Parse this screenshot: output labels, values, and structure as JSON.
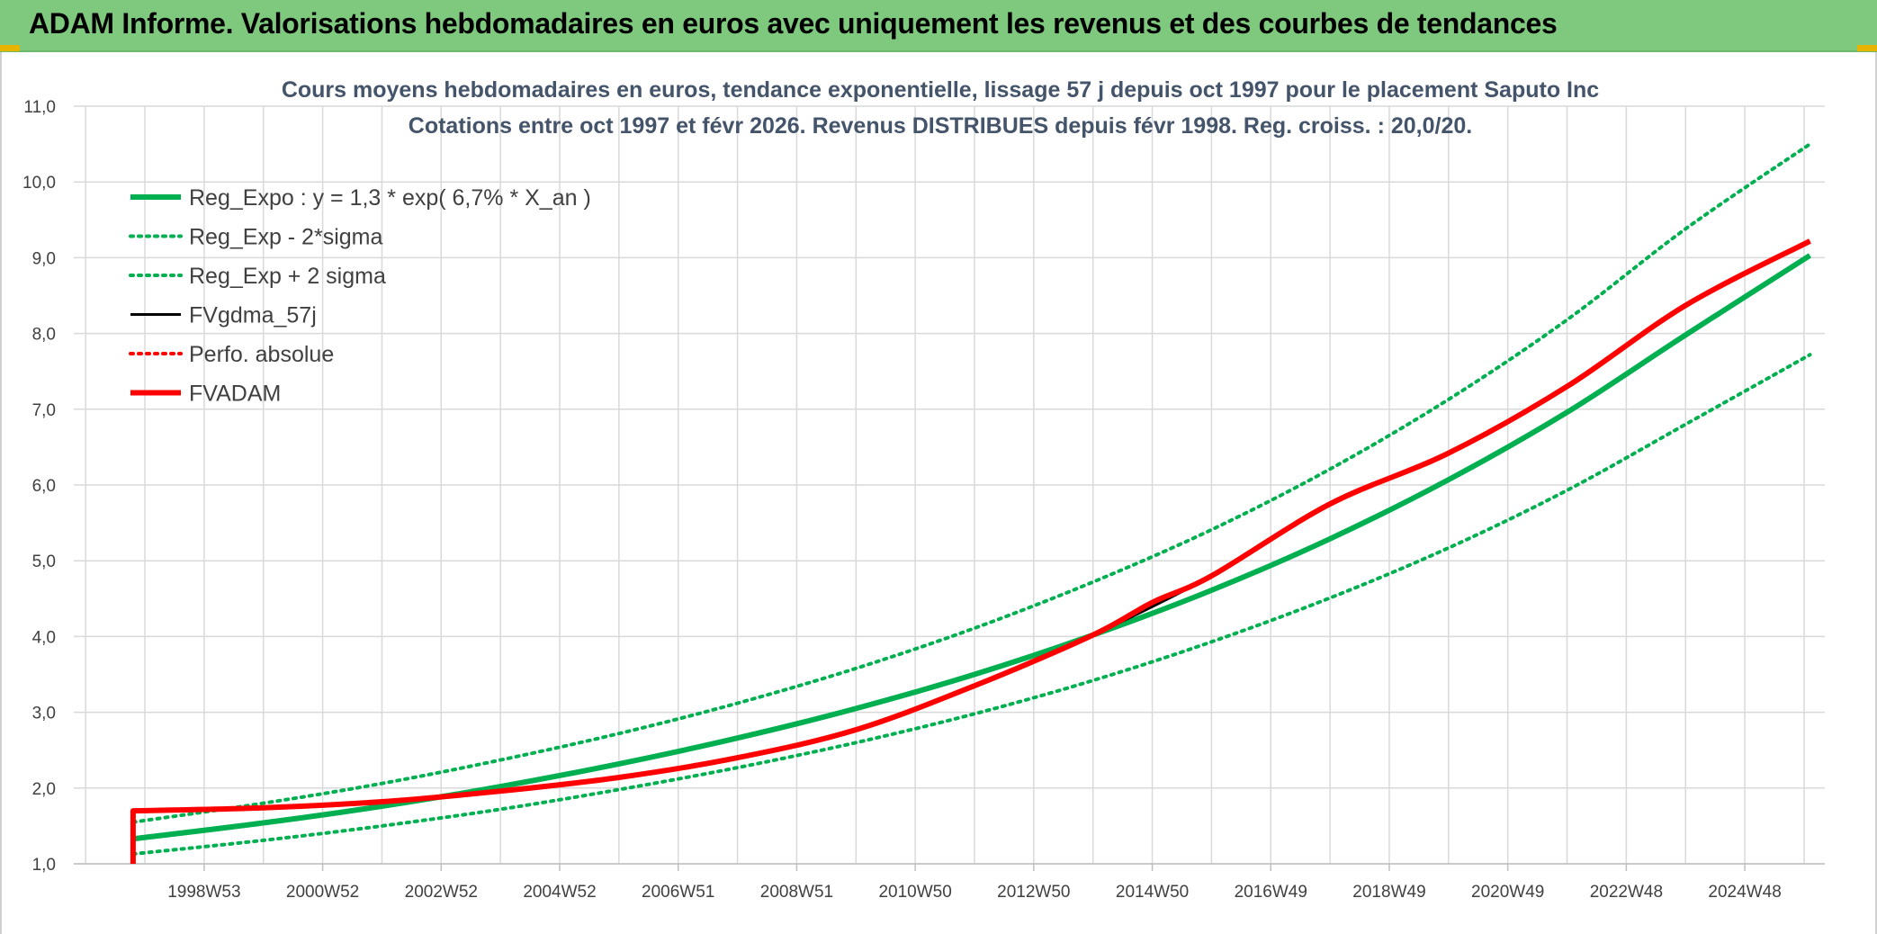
{
  "banner": {
    "title": "ADAM Informe. Valorisations hebdomadaires en euros avec uniquement les revenus et des courbes de tendances"
  },
  "colors": {
    "banner": "#7fc97f",
    "trend": "#00b050",
    "fvadam": "#ff0000",
    "gdma": "#000000",
    "grid": "#d9d9d9"
  },
  "chart_data": {
    "type": "line",
    "title_lines": [
      "Cours moyens hebdomadaires en euros, tendance exponentielle, lissage 57 j depuis oct 1997 pour le placement Saputo Inc",
      "Cotations entre oct 1997 et févr 2026. Revenus DISTRIBUES depuis févr 1998. Reg. croiss. : 20,0/20."
    ],
    "ylim": [
      1.0,
      11.0
    ],
    "y_ticks": [
      "1,0",
      "2,0",
      "3,0",
      "4,0",
      "5,0",
      "6,0",
      "7,0",
      "8,0",
      "9,0",
      "10,0",
      "11,0"
    ],
    "y_tick_values": [
      1,
      2,
      3,
      4,
      5,
      6,
      7,
      8,
      9,
      10,
      11
    ],
    "xlim": [
      1996.8,
      2026.35
    ],
    "x_tick_labels": [
      "1998W53",
      "2000W52",
      "2002W52",
      "2004W52",
      "2006W51",
      "2008W51",
      "2010W50",
      "2012W50",
      "2014W50",
      "2016W49",
      "2018W49",
      "2020W49",
      "2022W48",
      "2024W48"
    ],
    "x_tick_values": [
      1999,
      2001,
      2003,
      2005,
      2007,
      2009,
      2011,
      2013,
      2015,
      2017,
      2019,
      2021,
      2023,
      2025
    ],
    "grid": true,
    "legend_position": "top-left",
    "series": [
      {
        "name": "Reg_Expo : y = 1,3 * exp( 6,7% *  X_an )",
        "style": "solid-thick",
        "color": "#00b050",
        "x": [
          1997.8,
          2000,
          2002,
          2004,
          2006,
          2008,
          2010,
          2012,
          2014,
          2016,
          2018,
          2020,
          2022,
          2024,
          2026.1
        ],
        "y": [
          1.33,
          1.54,
          1.76,
          2.02,
          2.32,
          2.66,
          3.05,
          3.5,
          4.02,
          4.61,
          5.29,
          6.07,
          6.96,
          7.98,
          9.03
        ]
      },
      {
        "name": "Reg_Exp - 2*sigma",
        "style": "dotted",
        "color": "#00b050",
        "x": [
          1997.8,
          2000,
          2002,
          2004,
          2006,
          2008,
          2010,
          2012,
          2014,
          2016,
          2018,
          2020,
          2022,
          2024,
          2026.1
        ],
        "y": [
          1.13,
          1.31,
          1.5,
          1.72,
          1.98,
          2.27,
          2.6,
          2.98,
          3.42,
          3.93,
          4.51,
          5.17,
          5.93,
          6.8,
          7.72
        ]
      },
      {
        "name": "Reg_Exp + 2 sigma",
        "style": "dotted",
        "color": "#00b050",
        "x": [
          1997.8,
          2000,
          2002,
          2004,
          2006,
          2008,
          2010,
          2012,
          2014,
          2016,
          2018,
          2020,
          2022,
          2024,
          2026.1
        ],
        "y": [
          1.55,
          1.8,
          2.06,
          2.37,
          2.72,
          3.12,
          3.58,
          4.11,
          4.72,
          5.41,
          6.21,
          7.13,
          8.18,
          9.38,
          10.5
        ]
      },
      {
        "name": "FVgdma_57j",
        "style": "solid",
        "color": "#000000",
        "x": [
          1997.8,
          2000,
          2002,
          2004,
          2006,
          2008,
          2010,
          2012,
          2014,
          2016,
          2018,
          2020,
          2022,
          2024,
          2026.1
        ],
        "y": [
          1.7,
          1.74,
          1.82,
          1.96,
          2.14,
          2.4,
          2.77,
          3.35,
          4.02,
          4.8,
          5.75,
          6.42,
          7.3,
          8.37,
          9.22
        ]
      },
      {
        "name": "Perfo. absolue",
        "style": "dotted",
        "color": "#ff0000",
        "x": [],
        "y": []
      },
      {
        "name": "FVADAM",
        "style": "solid-thick",
        "color": "#ff0000",
        "x": [
          1997.8,
          1997.8,
          2000,
          2002,
          2004,
          2006,
          2008,
          2010,
          2012,
          2014,
          2015,
          2016,
          2018,
          2020,
          2022,
          2024,
          2026.1
        ],
        "y": [
          1.0,
          1.7,
          1.74,
          1.82,
          1.96,
          2.14,
          2.4,
          2.77,
          3.35,
          4.02,
          4.45,
          4.8,
          5.75,
          6.42,
          7.3,
          8.37,
          9.22
        ]
      }
    ]
  }
}
